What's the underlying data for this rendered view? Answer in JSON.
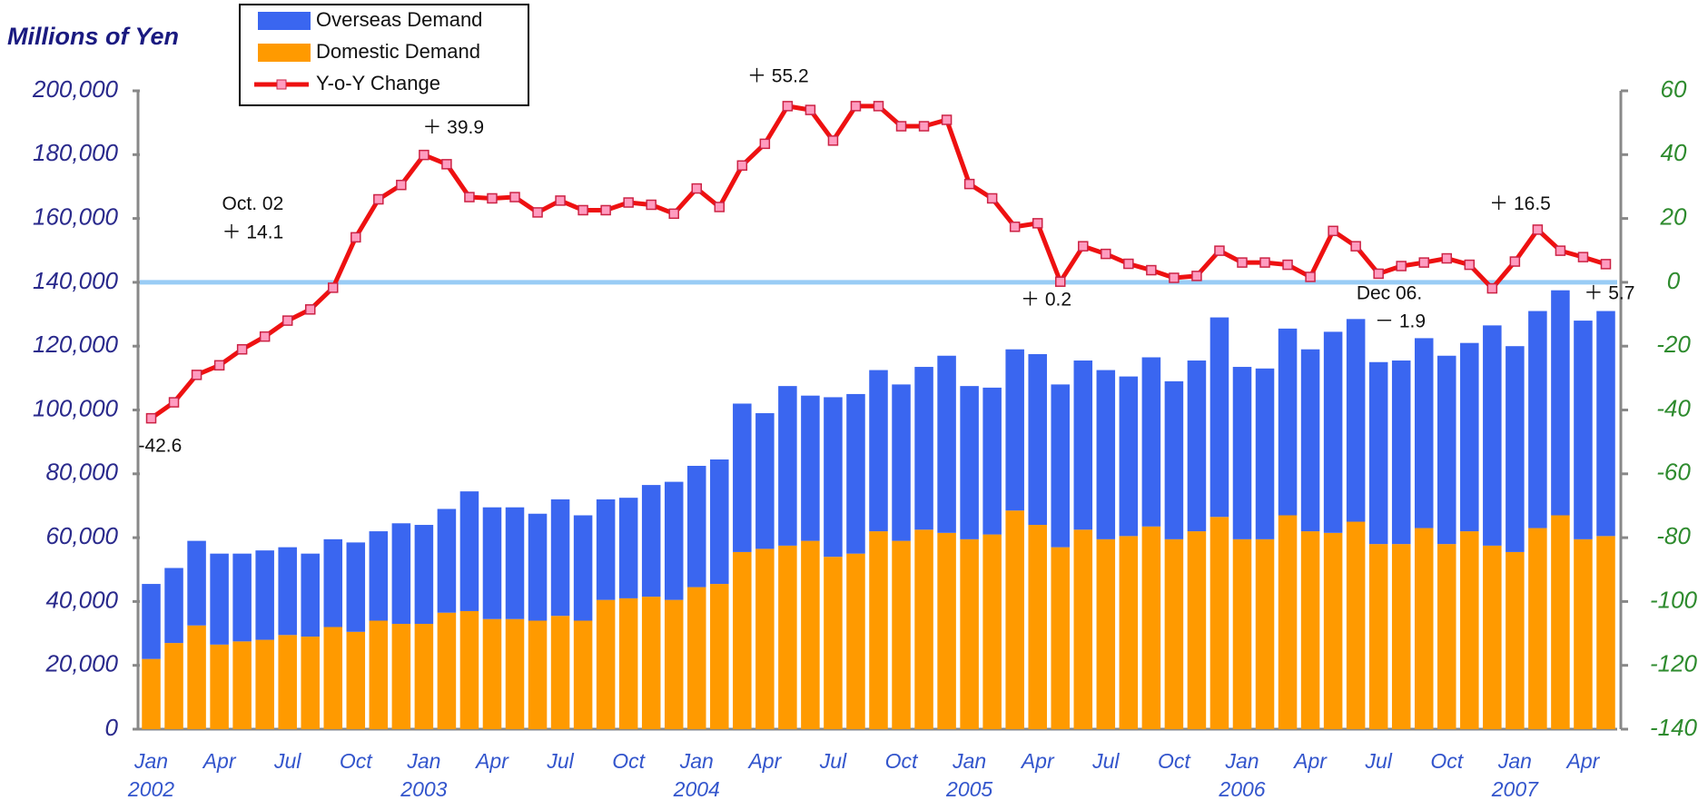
{
  "chart_data": {
    "type": "bar",
    "ylabel": "Millions of Yen",
    "categories": [
      "Jan",
      null,
      null,
      "Apr",
      null,
      null,
      "Jul",
      null,
      null,
      "Oct",
      null,
      null,
      "Jan",
      null,
      null,
      "Apr",
      null,
      null,
      "Jul",
      null,
      null,
      "Oct",
      null,
      null,
      "Jan",
      null,
      null,
      "Apr",
      null,
      null,
      "Jul",
      null,
      null,
      "Oct",
      null,
      null,
      "Jan",
      null,
      null,
      "Apr",
      null,
      null,
      "Jul",
      null,
      null,
      "Oct",
      null,
      null,
      "Jan",
      null,
      null,
      "Apr",
      null,
      null,
      "Jul",
      null,
      null,
      "Oct",
      null,
      null,
      "Jan",
      null,
      null,
      "Apr",
      null
    ],
    "years": [
      "2002",
      "2003",
      "2004",
      "2005",
      "2006",
      "2007"
    ],
    "series": [
      {
        "name": "Overseas Demand",
        "color": "#3a66f0",
        "stack": true,
        "values": [
          23500,
          23500,
          26500,
          28500,
          27500,
          28000,
          27500,
          26000,
          27500,
          28000,
          28000,
          31500,
          31000,
          32500,
          37500,
          35000,
          35000,
          33500,
          36500,
          33000,
          31500,
          31500,
          35000,
          37000,
          38000,
          39000,
          46500,
          42500,
          50000,
          45500,
          50000,
          50000,
          50500,
          49000,
          51000,
          55500,
          48000,
          46000,
          50500,
          53500,
          51000,
          53000,
          53000,
          50000,
          53000,
          49500,
          53500,
          62500,
          54000,
          53500,
          58500,
          57000,
          63000,
          63500,
          57000,
          57500,
          59500,
          59000,
          59000,
          69000,
          64500,
          68000,
          70500,
          68500,
          70500
        ]
      },
      {
        "name": "Domestic Demand",
        "color": "#ff9a00",
        "stack": true,
        "values": [
          22000,
          27000,
          32500,
          26500,
          27500,
          28000,
          29500,
          29000,
          32000,
          30500,
          34000,
          33000,
          33000,
          36500,
          37000,
          34500,
          34500,
          34000,
          35500,
          34000,
          40500,
          41000,
          41500,
          40500,
          44500,
          45500,
          55500,
          56500,
          57500,
          59000,
          54000,
          55000,
          62000,
          59000,
          62500,
          61500,
          59500,
          61000,
          68500,
          64000,
          57000,
          62500,
          59500,
          60500,
          63500,
          59500,
          62000,
          66500,
          59500,
          59500,
          67000,
          62000,
          61500,
          65000,
          58000,
          58000,
          63000,
          58000,
          62000,
          57500,
          55500,
          63000,
          67000,
          59500,
          60500
        ]
      },
      {
        "name": "Y-o-Y Change",
        "color": "#ee1111",
        "axis": "y2",
        "type": "line",
        "values": [
          -42.6,
          -37.6,
          -29,
          -26,
          -21,
          -17,
          -12,
          -8.5,
          -1.7,
          14.1,
          26,
          30.5,
          39.9,
          37,
          26.7,
          26.3,
          26.7,
          21.9,
          25.6,
          22.6,
          22.6,
          25,
          24.3,
          21.5,
          29.4,
          23.6,
          36.6,
          43.4,
          55.2,
          54,
          44.4,
          55.2,
          55.2,
          48.9,
          48.9,
          50.9,
          30.8,
          26.3,
          17.4,
          18.5,
          0.2,
          11.3,
          8.9,
          5.8,
          3.8,
          1.4,
          2,
          9.9,
          6.2,
          6.2,
          5.5,
          1.7,
          16.1,
          11.3,
          2.7,
          5.1,
          6.2,
          7.5,
          5.5,
          -1.9,
          6.5,
          16.5,
          9.9,
          7.9,
          5.7
        ]
      }
    ],
    "ylim": [
      0,
      200000
    ],
    "yticks": [
      0,
      {
        "value": 20000,
        "label": "20,000"
      },
      {
        "value": 40000,
        "label": "40,000"
      },
      {
        "value": 60000,
        "label": "60,000"
      },
      {
        "value": 80000,
        "label": "80,000"
      },
      {
        "value": 100000,
        "label": "100,000"
      },
      {
        "value": 120000,
        "label": "120,000"
      },
      {
        "value": 140000,
        "label": "140,000"
      },
      {
        "value": 160000,
        "label": "160,000"
      },
      {
        "value": 180000,
        "label": "180,000"
      },
      {
        "value": 200000,
        "label": "200,000"
      }
    ],
    "y2lim": [
      -140,
      60
    ],
    "y2ticks": [
      -140,
      -120,
      -100,
      -80,
      -60,
      -40,
      -20,
      0,
      20,
      40,
      60
    ],
    "zero_line_color": "#99ccf5",
    "annotations": [
      "-42.6",
      "Oct. 02",
      "＋ 14.1",
      "＋ 39.9",
      "＋ 55.2",
      "＋ 0.2",
      "Dec 06.",
      "－ 1.9",
      "＋ 16.5",
      "＋ 5.7"
    ]
  }
}
